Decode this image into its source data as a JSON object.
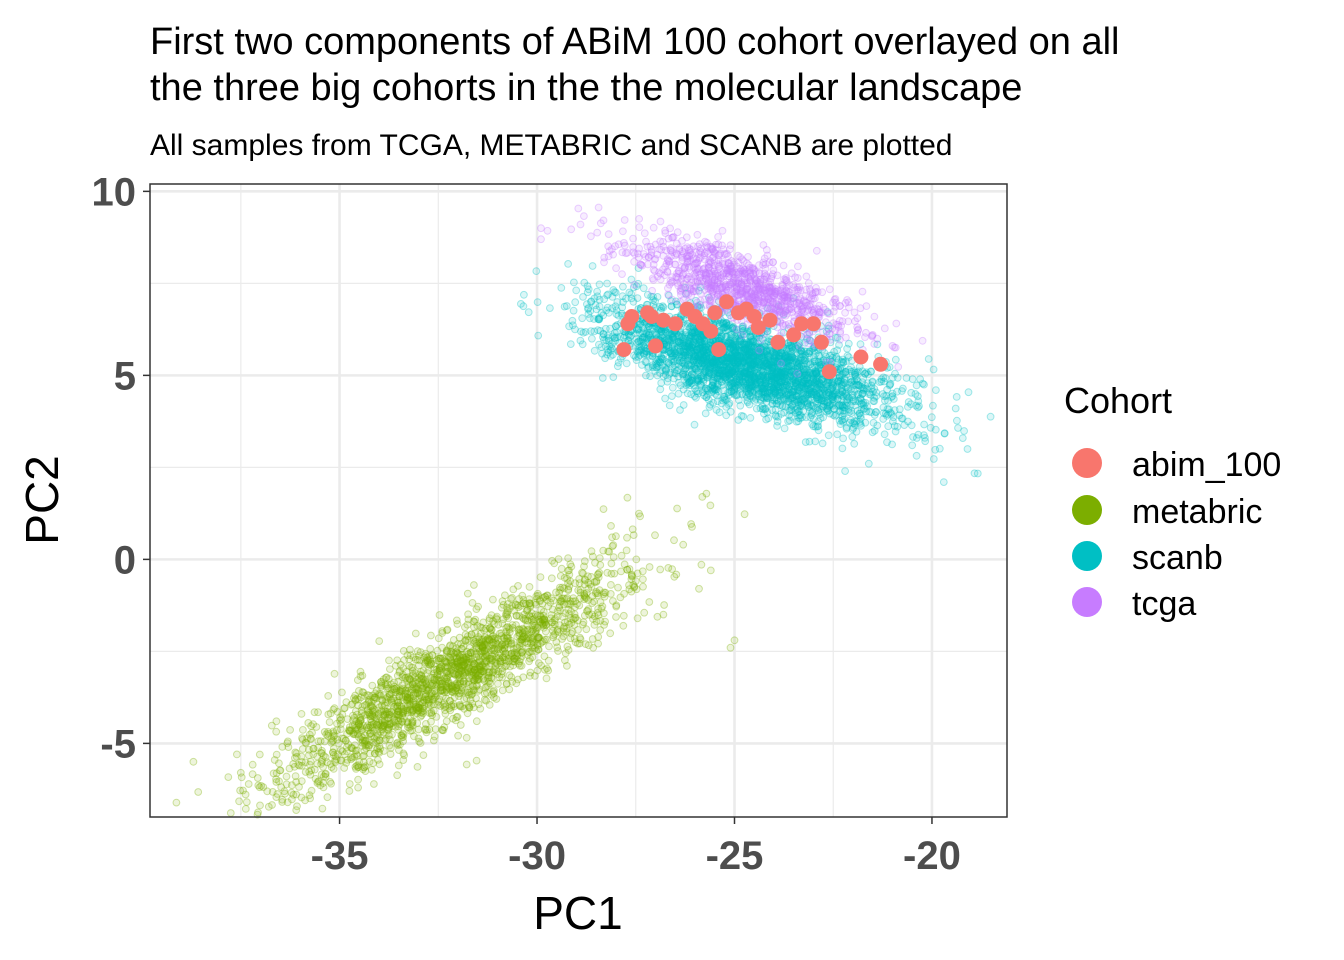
{
  "chart_data": {
    "type": "scatter",
    "title_line1": "First two components of ABiM 100 cohort overlayed on all",
    "title_line2": "the three big cohorts in the the molecular landscape",
    "subtitle": "All samples from TCGA, METABRIC and SCANB are plotted",
    "xlabel": "PC1",
    "ylabel": "PC2",
    "xlim": [
      -39.8,
      -18.1
    ],
    "ylim": [
      -7.0,
      10.2
    ],
    "x_ticks": [
      -35,
      -30,
      -25,
      -20
    ],
    "x_tick_labels": [
      "-35",
      "-30",
      "-25",
      "-20"
    ],
    "y_ticks": [
      -5,
      0,
      5,
      10
    ],
    "y_tick_labels": [
      "-5",
      "0",
      "5",
      "10"
    ],
    "grid": true,
    "legend": {
      "title": "Cohort",
      "position": "right",
      "items": [
        {
          "label": "abim_100",
          "color": "#F8766D"
        },
        {
          "label": "metabric",
          "color": "#7CAE00"
        },
        {
          "label": "scanb",
          "color": "#00BFC4"
        },
        {
          "label": "tcga",
          "color": "#C77CFF"
        }
      ]
    },
    "series": [
      {
        "name": "metabric",
        "color": "#7CAE00",
        "cluster": {
          "center": [
            -32.2,
            -3.2
          ],
          "count": 1900,
          "axis_angle_deg": 34,
          "sd_major": 2.6,
          "sd_minor": 0.55
        },
        "points": [
          [
            -38.7,
            -5.5
          ],
          [
            -37.6,
            -5.3
          ],
          [
            -37.5,
            -5.8
          ],
          [
            -36.4,
            -6.3
          ],
          [
            -35.4,
            -5.9
          ],
          [
            -36.6,
            -4.4
          ],
          [
            -31.2,
            -1.6
          ],
          [
            -29.3,
            -0.5
          ],
          [
            -28.1,
            0.6
          ],
          [
            -26.3,
            0.4
          ],
          [
            -25.9,
            -0.8
          ],
          [
            -25.6,
            -0.3
          ],
          [
            -26.8,
            -1.5
          ],
          [
            -25.0,
            -2.2
          ],
          [
            -25.1,
            -2.4
          ],
          [
            -28.6,
            -1.0
          ],
          [
            -30.5,
            -2.4
          ],
          [
            -31.9,
            -4.0
          ],
          [
            -33.5,
            -5.6
          ],
          [
            -34.6,
            -5.2
          ],
          [
            -29.8,
            -3.0
          ],
          [
            -32.8,
            -4.7
          ]
        ]
      },
      {
        "name": "scanb",
        "color": "#00BFC4",
        "cluster": {
          "center": [
            -24.7,
            5.3
          ],
          "count": 3000,
          "axis_angle_deg": -18,
          "sd_major": 1.9,
          "sd_minor": 0.55
        },
        "points": [
          [
            -28.2,
            7.2
          ],
          [
            -27.8,
            6.2
          ],
          [
            -27.5,
            5.5
          ],
          [
            -19.9,
            4.6
          ],
          [
            -19.4,
            4.1
          ],
          [
            -19.1,
            3.0
          ],
          [
            -19.7,
            2.1
          ],
          [
            -20.5,
            3.1
          ],
          [
            -21.2,
            3.4
          ],
          [
            -22.2,
            2.4
          ],
          [
            -21.6,
            2.6
          ],
          [
            -20.3,
            4.9
          ],
          [
            -23.1,
            3.2
          ],
          [
            -24.2,
            3.8
          ]
        ]
      },
      {
        "name": "tcga",
        "color": "#C77CFF",
        "cluster": {
          "center": [
            -24.8,
            7.4
          ],
          "count": 1000,
          "axis_angle_deg": -22,
          "sd_major": 1.55,
          "sd_minor": 0.45
        },
        "points": [
          [
            -29.9,
            9.0
          ],
          [
            -29.9,
            8.7
          ],
          [
            -28.9,
            9.1
          ],
          [
            -28.3,
            8.2
          ],
          [
            -27.8,
            8.6
          ],
          [
            -26.8,
            8.5
          ],
          [
            -21.5,
            6.1
          ],
          [
            -21.0,
            5.8
          ],
          [
            -22.2,
            6.7
          ]
        ]
      },
      {
        "name": "abim_100",
        "color": "#F8766D",
        "points": [
          [
            -27.8,
            5.7
          ],
          [
            -27.7,
            6.4
          ],
          [
            -27.6,
            6.6
          ],
          [
            -27.2,
            6.7
          ],
          [
            -27.1,
            6.6
          ],
          [
            -27.0,
            5.8
          ],
          [
            -26.5,
            6.4
          ],
          [
            -26.2,
            6.8
          ],
          [
            -26.0,
            6.6
          ],
          [
            -25.8,
            6.4
          ],
          [
            -25.5,
            6.7
          ],
          [
            -25.4,
            5.7
          ],
          [
            -25.2,
            7.0
          ],
          [
            -24.9,
            6.7
          ],
          [
            -24.7,
            6.8
          ],
          [
            -24.5,
            6.6
          ],
          [
            -24.1,
            6.5
          ],
          [
            -23.9,
            5.9
          ],
          [
            -23.5,
            6.1
          ],
          [
            -23.3,
            6.4
          ],
          [
            -23.0,
            6.4
          ],
          [
            -22.8,
            5.9
          ],
          [
            -22.6,
            5.1
          ],
          [
            -21.8,
            5.5
          ],
          [
            -21.3,
            5.3
          ],
          [
            -25.6,
            6.2
          ],
          [
            -24.4,
            6.3
          ],
          [
            -26.8,
            6.5
          ]
        ]
      }
    ]
  }
}
